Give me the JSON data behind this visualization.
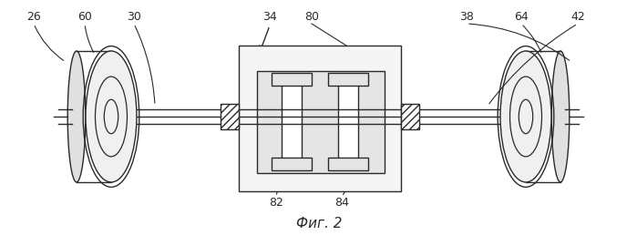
{
  "bg_color": "#ffffff",
  "line_color": "#2a2a2a",
  "fig_caption": "Фиг. 2",
  "lw": 1.0,
  "figsize": [
    6.99,
    2.58
  ],
  "dpi": 100,
  "label_26": "26",
  "label_60": "60",
  "label_30": "30",
  "label_34": "34",
  "label_80": "80",
  "label_38": "38",
  "label_64": "64",
  "label_42": "42",
  "label_82": "82",
  "label_84": "84"
}
